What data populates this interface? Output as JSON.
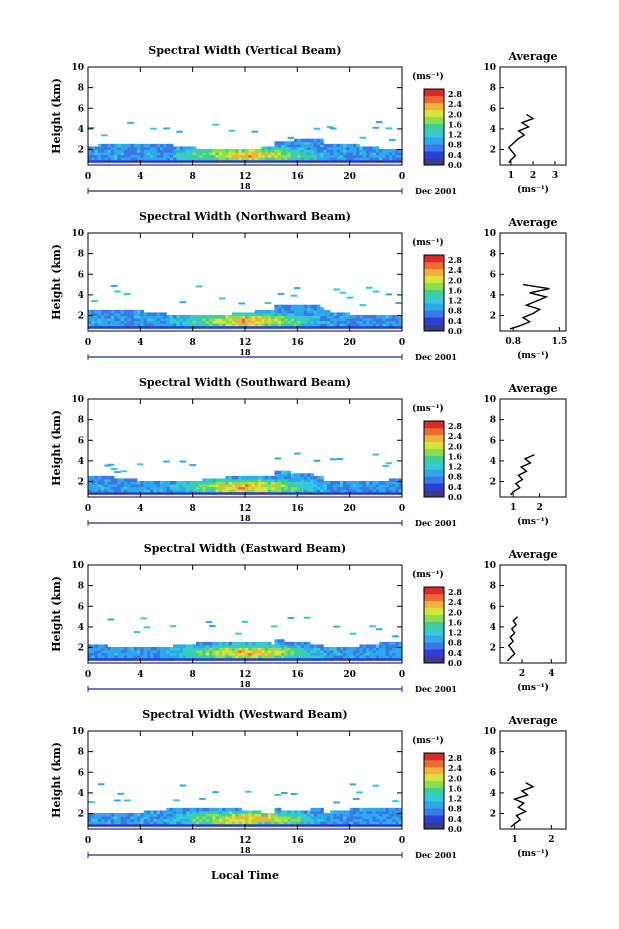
{
  "figure": {
    "x_label": "Local Time",
    "y_label": "Height (km)",
    "date_label": "Dec 2001",
    "day_label": "18",
    "cbar_unit": "(ms⁻¹)",
    "avg_title": "Average",
    "avg_unit": "(ms⁻¹)"
  },
  "colors": {
    "scale": [
      "#3a3a8a",
      "#2a3fd6",
      "#3a78e6",
      "#2ea8ec",
      "#34c8d8",
      "#3ccf9a",
      "#8edd4a",
      "#d8e23a",
      "#f0b23a",
      "#ee6a34",
      "#dc2a2a"
    ],
    "background": "#ffffff",
    "axis": "#000000"
  },
  "chart_data": [
    {
      "type": "heatmap",
      "title": "Spectral Width (Vertical Beam)",
      "x_ticks": [
        "0",
        "4",
        "8",
        "12",
        "16",
        "20",
        "0"
      ],
      "xlim": [
        0,
        24
      ],
      "y_ticks": [
        "2",
        "4",
        "6",
        "8",
        "10"
      ],
      "ylim": [
        0.5,
        10
      ],
      "cbar_ticks": [
        "0.0",
        "0.4",
        "0.8",
        "1.2",
        "1.6",
        "2.0",
        "2.4",
        "2.8"
      ],
      "cbar_range": [
        0,
        3.0
      ],
      "profile": {
        "x_ticks": [
          "1",
          "2",
          "3"
        ],
        "xlim": [
          0.5,
          3.5
        ],
        "height": [
          0.7,
          1.0,
          1.4,
          1.8,
          2.2,
          2.6,
          3.0,
          3.4,
          3.8,
          4.2,
          4.6,
          5.0,
          5.4
        ],
        "width": [
          0.9,
          1.0,
          1.2,
          1.05,
          0.9,
          1.1,
          1.3,
          1.6,
          1.35,
          1.8,
          1.5,
          2.0,
          1.7
        ]
      }
    },
    {
      "type": "heatmap",
      "title": "Spectral Width (Northward Beam)",
      "x_ticks": [
        "0",
        "4",
        "8",
        "12",
        "16",
        "20",
        "0"
      ],
      "xlim": [
        0,
        24
      ],
      "y_ticks": [
        "2",
        "4",
        "6",
        "8",
        "10"
      ],
      "ylim": [
        0.5,
        10
      ],
      "cbar_ticks": [
        "0.0",
        "0.4",
        "0.8",
        "1.2",
        "1.6",
        "2.0",
        "2.4",
        "2.8"
      ],
      "cbar_range": [
        0,
        3.0
      ],
      "profile": {
        "x_ticks": [
          "0.8",
          "1.5"
        ],
        "xlim": [
          0.6,
          1.6
        ],
        "height": [
          0.7,
          1.0,
          1.4,
          1.8,
          2.2,
          2.6,
          3.0,
          3.4,
          3.8,
          4.2,
          4.6,
          5.0
        ],
        "width": [
          0.75,
          0.9,
          1.05,
          0.95,
          1.1,
          1.2,
          1.0,
          1.15,
          1.3,
          1.05,
          1.35,
          0.95
        ]
      }
    },
    {
      "type": "heatmap",
      "title": "Spectral Width (Southward Beam)",
      "x_ticks": [
        "0",
        "4",
        "8",
        "12",
        "16",
        "20",
        "0"
      ],
      "xlim": [
        0,
        24
      ],
      "y_ticks": [
        "2",
        "4",
        "6",
        "8",
        "10"
      ],
      "ylim": [
        0.5,
        10
      ],
      "cbar_ticks": [
        "0.0",
        "0.4",
        "0.8",
        "1.2",
        "1.6",
        "2.0",
        "2.4",
        "2.8"
      ],
      "cbar_range": [
        0,
        3.0
      ],
      "profile": {
        "x_ticks": [
          "1",
          "2"
        ],
        "xlim": [
          0.5,
          3.0
        ],
        "height": [
          0.7,
          1.0,
          1.4,
          1.8,
          2.2,
          2.6,
          3.0,
          3.4,
          3.8,
          4.2,
          4.6
        ],
        "width": [
          0.9,
          1.0,
          1.25,
          1.1,
          1.35,
          1.2,
          1.5,
          1.3,
          1.65,
          1.45,
          1.8
        ]
      }
    },
    {
      "type": "heatmap",
      "title": "Spectral Width (Eastward Beam)",
      "x_ticks": [
        "0",
        "4",
        "8",
        "12",
        "16",
        "20",
        "0"
      ],
      "xlim": [
        0,
        24
      ],
      "y_ticks": [
        "2",
        "4",
        "6",
        "8",
        "10"
      ],
      "ylim": [
        0.5,
        10
      ],
      "cbar_ticks": [
        "0.0",
        "0.4",
        "0.8",
        "1.2",
        "1.6",
        "2.0",
        "2.4",
        "2.8"
      ],
      "cbar_range": [
        0,
        3.0
      ],
      "profile": {
        "x_ticks": [
          "2",
          "4"
        ],
        "xlim": [
          0.5,
          5.0
        ],
        "height": [
          0.7,
          1.0,
          1.4,
          1.8,
          2.2,
          2.6,
          3.0,
          3.4,
          3.8,
          4.2,
          4.6,
          5.0
        ],
        "width": [
          1.0,
          1.2,
          1.5,
          1.3,
          1.1,
          1.4,
          1.2,
          1.5,
          1.3,
          1.6,
          1.4,
          1.7
        ]
      }
    },
    {
      "type": "heatmap",
      "title": "Spectral Width (Westward Beam)",
      "x_ticks": [
        "0",
        "4",
        "8",
        "12",
        "16",
        "20",
        "0"
      ],
      "xlim": [
        0,
        24
      ],
      "y_ticks": [
        "2",
        "4",
        "6",
        "8",
        "10"
      ],
      "ylim": [
        0.5,
        10
      ],
      "cbar_ticks": [
        "0.0",
        "0.4",
        "0.8",
        "1.2",
        "1.6",
        "2.0",
        "2.4",
        "2.8"
      ],
      "cbar_range": [
        0,
        3.0
      ],
      "profile": {
        "x_ticks": [
          "1",
          "2"
        ],
        "xlim": [
          0.6,
          2.4
        ],
        "height": [
          0.7,
          1.0,
          1.4,
          1.8,
          2.2,
          2.6,
          3.0,
          3.4,
          3.8,
          4.2,
          4.6,
          5.0
        ],
        "width": [
          0.9,
          1.0,
          1.15,
          1.05,
          1.3,
          1.1,
          1.25,
          1.0,
          1.35,
          1.2,
          1.5,
          1.3
        ]
      }
    }
  ]
}
